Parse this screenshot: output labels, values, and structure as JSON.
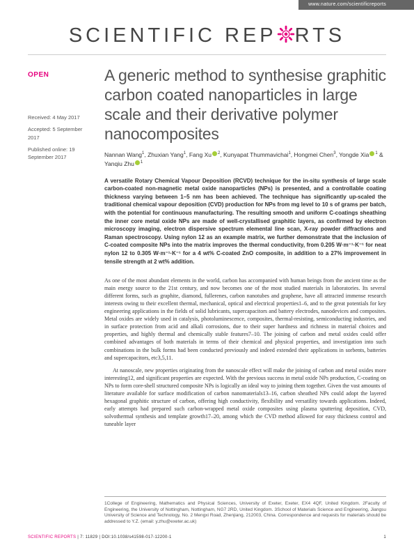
{
  "topbar_url": "www.nature.com/scientificreports",
  "journal_name_a": "SCIENTIFIC ",
  "journal_name_b": "REP",
  "journal_name_c": "RTS",
  "open_label": "OPEN",
  "received": "Received: 4 May 2017",
  "accepted": "Accepted: 5 September 2017",
  "published": "Published online: 19 September 2017",
  "title": "A generic method to synthesise graphitic carbon coated nanoparticles in large scale and their derivative polymer nanocomposites",
  "authors_html": "Nannan Wang<sup>1</sup>, Zhuxian Yang<sup>1</sup>, Fang Xu<orcid></orcid><sup>2</sup>, Kunyapat Thummavichai<sup>1</sup>, Hongmei Chen<sup>3</sup>, Yongde Xia<orcid></orcid><sup>1</sup> & Yanqiu Zhu<orcid></orcid><sup>1</sup>",
  "abstract": "A versatile Rotary Chemical Vapour Deposition (RCVD) technique for the in-situ synthesis of large scale carbon-coated non-magnetic metal oxide nanoparticles (NPs) is presented, and a controllable coating thickness varying between 1–5 nm has been achieved. The technique has significantly up-scaled the traditional chemical vapour deposition (CVD) production for NPs from mg level to 10 s of grams per batch, with the potential for continuous manufacturing. The resulting smooth and uniform C-coatings sheathing the inner core metal oxide NPs are made of well-crystallised graphitic layers, as confirmed by electron microscopy imaging, electron dispersive spectrum elemental line scan, X-ray powder diffractions and Raman spectroscopy. Using nylon 12 as an example matrix, we further demonstrate that the inclusion of C-coated composite NPs into the matrix improves the thermal conductivity, from 0.205 W·m⁻¹·K⁻¹ for neat nylon 12 to 0.305 W·m⁻¹·K⁻¹ for a 4 wt% C-coated ZnO composite, in addition to a 27% improvement in tensile strength at 2 wt% addition.",
  "para1": "As one of the most abundant elements in the world, carbon has accompanied with human beings from the ancient time as the main energy source to the 21st century, and now becomes one of the most studied materials in laboratories. Its several different forms, such as graphite, diamond, fullerenes, carbon nanotubes and graphene, have all attracted immense research interests owing to their excellent thermal, mechanical, optical and electrical properties1–6, and to the great potentials for key engineering applications in the fields of solid lubricants, supercapacitors and battery electrodes, nanodevices and composites. Metal oxides are widely used in catalysis, photoluminescence, composites, thermal-resisting, semiconducting industries, and in surface protection from acid and alkali corrosions, due to their super hardness and richness in material choices and properties, and highly thermal and chemically stable features7–10. The joining of carbon and metal oxides could offer combined advantages of both materials in terms of their chemical and physical properties, and investigation into such combinations in the bulk forms had been conducted previously and indeed extended their applications in sorbents, batteries and supercapacitors, etc3,5,11.",
  "para2": "At nanoscale, new properties originating from the nanoscale effect will make the joining of carbon and metal oxides more interesting12, and significant properties are expected. With the previous success in metal oxide NPs production, C-coating on NPs to form core-shell structured composite NPs is logically an ideal way to joining them together. Given the vast amounts of literature available for surface modification of carbon nanomaterials13–16, carbon sheathed NPs could adopt the layered hexagonal graphitic structure of carbon, offering high conductivity, flexibility and versatility towards applications. Indeed, early attempts had prepared such carbon-wrapped metal oxide composites using plasma sputtering deposition, CVD, solvothermal synthesis and template growth17–20, among which the CVD method allowed for easy thickness control and tuneable layer",
  "affiliations": "1College of Engineering, Mathematics and Physical Sciences, University of Exeter, Exeter, EX4 4QF, United Kingdom. 2Faculty of Engineering, the University of Nottingham, Nottingham, NG7 2RD, United Kingdom. 3School of Materials Science and Engineering, Jiangsu University of Science and Technology, No. 2 Mengxi Road, Zhenjiang, 212003, China. Correspondence and requests for materials should be addressed to Y.Z. (email: y.zhu@exeter.ac.uk)",
  "footer_journal": "SCIENTIFIC REPORTS",
  "footer_cite": " | 7: 11829 | DOI:10.1038/s41598-017-12200-1",
  "footer_page": "1",
  "colors": {
    "accent": "#e6007e",
    "orcid": "#a6ce39",
    "topbar_bg": "#666666"
  }
}
